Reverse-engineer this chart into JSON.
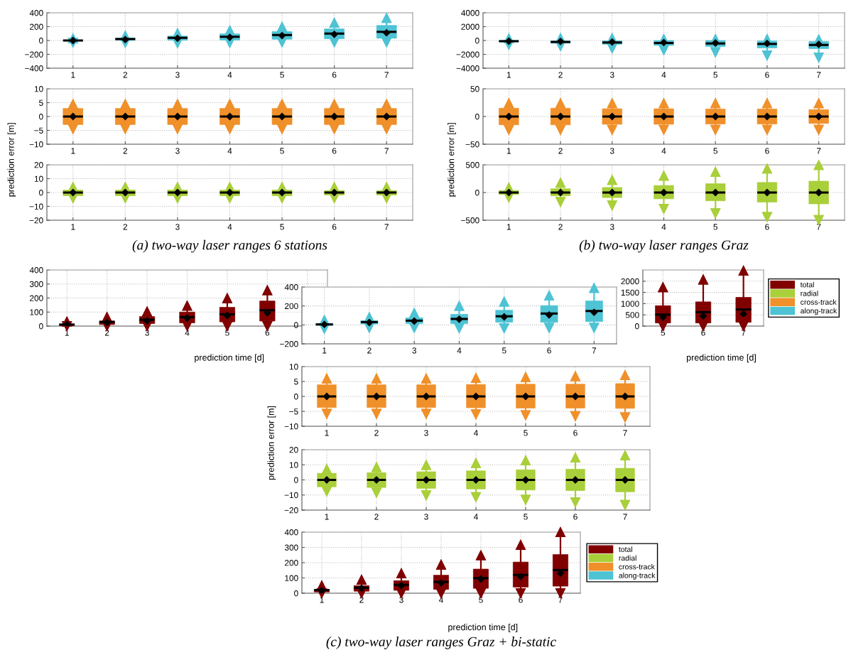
{
  "chart_data": [
    {
      "type": "box",
      "categories": [
        "1",
        "2",
        "3",
        "4",
        "5",
        "6",
        "7"
      ],
      "ylim": [
        -400,
        400
      ],
      "yticks": [
        -400,
        -200,
        0,
        200,
        400
      ],
      "grid": true,
      "series": [
        {
          "color": "#4ec3d4",
          "boxes": [
            {
              "low": -30,
              "q1": -5,
              "median": 0,
              "q3": 5,
              "high": 30,
              "mean": 0
            },
            {
              "low": -32,
              "q1": 4,
              "median": 21,
              "q3": 36,
              "high": 68,
              "mean": 14
            },
            {
              "low": -39,
              "q1": 4,
              "median": 39,
              "q3": 64,
              "high": 104,
              "mean": 32
            },
            {
              "low": -32,
              "q1": 7,
              "median": 54,
              "q3": 96,
              "high": 146,
              "mean": 46
            },
            {
              "low": -25,
              "q1": 18,
              "median": 79,
              "q3": 129,
              "high": 196,
              "mean": 71
            },
            {
              "low": -25,
              "q1": 25,
              "median": 100,
              "q3": 168,
              "high": 257,
              "mean": 89
            },
            {
              "low": -25,
              "q1": 32,
              "median": 125,
              "q3": 218,
              "high": 325,
              "mean": 111
            }
          ]
        }
      ]
    },
    {
      "type": "box",
      "categories": [
        "1",
        "2",
        "3",
        "4",
        "5",
        "6",
        "7"
      ],
      "ylim": [
        -10,
        10
      ],
      "yticks": [
        -10,
        -5,
        0,
        5,
        10
      ],
      "grid": true,
      "ylabel": "prediction error [m]",
      "series": [
        {
          "color": "#f0902a",
          "boxes": [
            {
              "low": -4.5,
              "q1": -2.9,
              "median": 0,
              "q3": 2.9,
              "high": 4.5,
              "mean": 0
            },
            {
              "low": -4.5,
              "q1": -2.9,
              "median": 0,
              "q3": 2.9,
              "high": 4.5,
              "mean": 0
            },
            {
              "low": -4.5,
              "q1": -2.9,
              "median": 0,
              "q3": 2.9,
              "high": 4.5,
              "mean": 0
            },
            {
              "low": -4.5,
              "q1": -2.9,
              "median": 0,
              "q3": 2.9,
              "high": 4.5,
              "mean": 0
            },
            {
              "low": -4.5,
              "q1": -2.9,
              "median": 0,
              "q3": 2.9,
              "high": 4.5,
              "mean": 0
            },
            {
              "low": -4.5,
              "q1": -2.9,
              "median": 0,
              "q3": 2.9,
              "high": 4.5,
              "mean": 0
            },
            {
              "low": -4.5,
              "q1": -2.9,
              "median": 0,
              "q3": 2.9,
              "high": 4.5,
              "mean": 0
            }
          ]
        }
      ]
    },
    {
      "type": "box",
      "categories": [
        "1",
        "2",
        "3",
        "4",
        "5",
        "6",
        "7"
      ],
      "ylim": [
        -20,
        20
      ],
      "yticks": [
        -20,
        -10,
        0,
        10,
        20
      ],
      "grid": true,
      "annotations": [
        "(a) two-way laser ranges 6 stations"
      ],
      "series": [
        {
          "color": "#a9cf3a",
          "boxes": [
            {
              "low": -4.1,
              "q1": -2.3,
              "median": 0,
              "q3": 1.8,
              "high": 3.9,
              "mean": 0
            },
            {
              "low": -4.1,
              "q1": -2.3,
              "median": 0,
              "q3": 1.8,
              "high": 3.9,
              "mean": 0
            },
            {
              "low": -4.1,
              "q1": -2.3,
              "median": 0,
              "q3": 1.8,
              "high": 3.9,
              "mean": 0
            },
            {
              "low": -4.1,
              "q1": -2.3,
              "median": 0,
              "q3": 1.8,
              "high": 3.9,
              "mean": 0
            },
            {
              "low": -4.1,
              "q1": -2.3,
              "median": 0,
              "q3": 1.8,
              "high": 3.9,
              "mean": 0
            },
            {
              "low": -4.1,
              "q1": -1.8,
              "median": 0,
              "q3": 1.4,
              "high": 3.9,
              "mean": 0
            },
            {
              "low": -4.1,
              "q1": -1.8,
              "median": 0,
              "q3": 1.4,
              "high": 3.9,
              "mean": 0
            }
          ]
        }
      ]
    },
    {
      "type": "box",
      "categories": [
        "1",
        "2",
        "3",
        "4",
        "5",
        "6",
        null
      ],
      "ylim": [
        0,
        400
      ],
      "yticks": [
        0,
        100,
        200,
        300,
        400
      ],
      "grid": true,
      "xlabel": "prediction time [d]",
      "series": [
        {
          "color": "#800000",
          "boxes": [
            {
              "low": 0,
              "q1": 4,
              "median": 11,
              "q3": 14,
              "high": 32,
              "mean": 11
            },
            {
              "low": 0,
              "q1": 11,
              "median": 30,
              "q3": 36,
              "high": 64,
              "mean": 25
            },
            {
              "low": 0,
              "q1": 18,
              "median": 45,
              "q3": 68,
              "high": 104,
              "mean": 38
            },
            {
              "low": 0,
              "q1": 23,
              "median": 64,
              "q3": 100,
              "high": 145,
              "mean": 57
            },
            {
              "low": 0,
              "q1": 30,
              "median": 84,
              "q3": 134,
              "high": 198,
              "mean": 75
            },
            {
              "low": 0,
              "q1": 36,
              "median": 113,
              "q3": 179,
              "high": 255,
              "mean": 95
            },
            null
          ]
        }
      ]
    },
    {
      "type": "box",
      "categories": [
        "1",
        "2",
        "3",
        "4",
        "5",
        "6",
        "7"
      ],
      "ylim": [
        -4000,
        4000
      ],
      "yticks": [
        -4000,
        -2000,
        0,
        2000,
        4000
      ],
      "grid": true,
      "series": [
        {
          "color": "#4ec3d4",
          "boxes": [
            {
              "low": -600,
              "q1": -200,
              "median": -100,
              "q3": 0,
              "high": 300,
              "mean": -100
            },
            {
              "low": -790,
              "q1": -390,
              "median": -210,
              "q3": -70,
              "high": 320,
              "mean": -140
            },
            {
              "low": -1110,
              "q1": -540,
              "median": -290,
              "q3": -40,
              "high": 320,
              "mean": -210
            },
            {
              "low": -1390,
              "q1": -710,
              "median": -360,
              "q3": 0,
              "high": 210,
              "mean": -290
            },
            {
              "low": -1680,
              "q1": -860,
              "median": -430,
              "q3": 0,
              "high": 210,
              "mean": -360
            },
            {
              "low": -2140,
              "q1": -1070,
              "median": -500,
              "q3": -70,
              "high": 210,
              "mean": -430
            },
            {
              "low": -2460,
              "q1": -1180,
              "median": -640,
              "q3": -140,
              "high": 140,
              "mean": -560
            }
          ]
        }
      ]
    },
    {
      "type": "box",
      "categories": [
        "1",
        "2",
        "3",
        "4",
        "5",
        "6",
        "7"
      ],
      "ylim": [
        -50,
        50
      ],
      "yticks": [
        -50,
        0,
        50
      ],
      "grid": true,
      "ylabel": "prediction error [m]",
      "series": [
        {
          "color": "#f0902a",
          "boxes": [
            {
              "low": -24,
              "q1": -15,
              "median": 0,
              "q3": 15,
              "high": 24,
              "mean": 0
            },
            {
              "low": -24,
              "q1": -15,
              "median": 0,
              "q3": 15,
              "high": 24,
              "mean": 0
            },
            {
              "low": -24,
              "q1": -14,
              "median": 0,
              "q3": 14,
              "high": 24,
              "mean": 0
            },
            {
              "low": -24,
              "q1": -14,
              "median": 0,
              "q3": 14,
              "high": 24,
              "mean": 0
            },
            {
              "low": -24,
              "q1": -13.5,
              "median": 0,
              "q3": 13.5,
              "high": 24,
              "mean": 0
            },
            {
              "low": -24,
              "q1": -13.5,
              "median": 0,
              "q3": 13.5,
              "high": 24,
              "mean": 0
            },
            {
              "low": -24,
              "q1": -12.5,
              "median": 0,
              "q3": 12.5,
              "high": 24,
              "mean": 0
            }
          ]
        }
      ]
    },
    {
      "type": "box",
      "categories": [
        "1",
        "2",
        "3",
        "4",
        "5",
        "6",
        "7"
      ],
      "ylim": [
        -500,
        500
      ],
      "yticks": [
        -500,
        0,
        500
      ],
      "grid": true,
      "annotations": [
        "(b) two-way laser ranges Graz"
      ],
      "series": [
        {
          "color": "#a9cf3a",
          "boxes": [
            {
              "low": -90,
              "q1": -32,
              "median": 0,
              "q3": 36,
              "high": 90,
              "mean": 0
            },
            {
              "low": -168,
              "q1": -59,
              "median": 0,
              "q3": 68,
              "high": 177,
              "mean": 0
            },
            {
              "low": -232,
              "q1": -91,
              "median": 0,
              "q3": 91,
              "high": 227,
              "mean": 0
            },
            {
              "low": -295,
              "q1": -114,
              "median": 0,
              "q3": 127,
              "high": 305,
              "mean": 0
            },
            {
              "low": -373,
              "q1": -150,
              "median": 0,
              "q3": 159,
              "high": 373,
              "mean": 0
            },
            {
              "low": -441,
              "q1": -173,
              "median": 0,
              "q3": 182,
              "high": 432,
              "mean": 0
            },
            {
              "low": -495,
              "q1": -205,
              "median": 0,
              "q3": 205,
              "high": 495,
              "mean": 0
            }
          ]
        }
      ]
    },
    {
      "type": "box",
      "categories": [
        "5",
        "6",
        "7"
      ],
      "ylim": [
        0,
        2500
      ],
      "yticks": [
        0,
        500,
        1000,
        1500,
        2000
      ],
      "grid": true,
      "xlabel": "prediction time [d]",
      "legend": "right",
      "series": [
        {
          "name": "total",
          "color": "#800000",
          "boxes": [
            {
              "low": 0,
              "q1": 140,
              "median": 510,
              "q3": 910,
              "high": 1730,
              "mean": 400
            },
            {
              "low": 0,
              "q1": 140,
              "median": 620,
              "q3": 1080,
              "high": 2070,
              "mean": 450
            },
            {
              "low": 0,
              "q1": 170,
              "median": 740,
              "q3": 1280,
              "high": 2470,
              "mean": 540
            }
          ]
        },
        {
          "name": "radial",
          "color": "#a9cf3a",
          "boxes": [
            null,
            null,
            null
          ]
        },
        {
          "name": "cross-track",
          "color": "#f0902a",
          "boxes": [
            null,
            null,
            null
          ]
        },
        {
          "name": "along-track",
          "color": "#4ec3d4",
          "boxes": [
            null,
            null,
            null
          ]
        }
      ]
    },
    {
      "type": "box",
      "categories": [
        "1",
        "2",
        "3",
        "4",
        "5",
        "6",
        "7"
      ],
      "ylim": [
        -200,
        400
      ],
      "yticks": [
        -200,
        0,
        200,
        400
      ],
      "grid": true,
      "series": [
        {
          "color": "#4ec3d4",
          "boxes": [
            {
              "low": -40,
              "q1": -5,
              "median": 5,
              "q3": 15,
              "high": 50,
              "mean": 5
            },
            {
              "low": -30,
              "q1": 10,
              "median": 30,
              "q3": 45,
              "high": 80,
              "mean": 25
            },
            {
              "low": -30,
              "q1": 15,
              "median": 45,
              "q3": 75,
              "high": 125,
              "mean": 40
            },
            {
              "low": -35,
              "q1": 14,
              "median": 63,
              "q3": 112,
              "high": 200,
              "mean": 60
            },
            {
              "low": -35,
              "q1": 28,
              "median": 91,
              "q3": 155,
              "high": 245,
              "mean": 85
            },
            {
              "low": -30,
              "q1": 28,
              "median": 120,
              "q3": 204,
              "high": 310,
              "mean": 105
            },
            {
              "low": -30,
              "q1": 35,
              "median": 147,
              "q3": 253,
              "high": 390,
              "mean": 133
            }
          ]
        }
      ]
    },
    {
      "type": "box",
      "categories": [
        "1",
        "2",
        "3",
        "4",
        "5",
        "6",
        "7"
      ],
      "ylim": [
        -10,
        10
      ],
      "yticks": [
        -10,
        -5,
        0,
        5,
        10
      ],
      "grid": true,
      "ylabel": "prediction error [m]",
      "series": [
        {
          "color": "#f0902a",
          "boxes": [
            {
              "low": -5.8,
              "q1": -3.7,
              "median": 0,
              "q3": 3.9,
              "high": 6.0,
              "mean": 0
            },
            {
              "low": -5.8,
              "q1": -3.7,
              "median": 0,
              "q3": 3.9,
              "high": 6.0,
              "mean": 0
            },
            {
              "low": -5.8,
              "q1": -3.7,
              "median": 0,
              "q3": 3.9,
              "high": 6.0,
              "mean": 0
            },
            {
              "low": -6.0,
              "q1": -3.8,
              "median": 0,
              "q3": 4.0,
              "high": 6.2,
              "mean": 0
            },
            {
              "low": -6.3,
              "q1": -3.9,
              "median": 0,
              "q3": 4.1,
              "high": 6.5,
              "mean": 0
            },
            {
              "low": -6.6,
              "q1": -3.9,
              "median": 0,
              "q3": 4.1,
              "high": 6.8,
              "mean": 0
            },
            {
              "low": -7.0,
              "q1": -4.0,
              "median": 0,
              "q3": 4.3,
              "high": 7.1,
              "mean": 0
            }
          ]
        }
      ]
    },
    {
      "type": "box",
      "categories": [
        "1",
        "2",
        "3",
        "4",
        "5",
        "6",
        "7"
      ],
      "ylim": [
        -20,
        20
      ],
      "yticks": [
        -20,
        -10,
        0,
        10,
        20
      ],
      "grid": true,
      "series": [
        {
          "color": "#a9cf3a",
          "boxes": [
            {
              "low": -7.5,
              "q1": -4.6,
              "median": 0,
              "q3": 4.4,
              "high": 7.1,
              "mean": 0
            },
            {
              "low": -8.5,
              "q1": -5.0,
              "median": 0,
              "q3": 4.8,
              "high": 8.5,
              "mean": 0
            },
            {
              "low": -10.2,
              "q1": -5.6,
              "median": 0,
              "q3": 5.4,
              "high": 9.8,
              "mean": 0
            },
            {
              "low": -11.4,
              "q1": -6.0,
              "median": 0,
              "q3": 6.0,
              "high": 11.2,
              "mean": 0
            },
            {
              "low": -13.1,
              "q1": -6.7,
              "median": 0,
              "q3": 6.7,
              "high": 12.9,
              "mean": 0
            },
            {
              "low": -14.8,
              "q1": -7.1,
              "median": 0,
              "q3": 7.1,
              "high": 14.8,
              "mean": 0
            },
            {
              "low": -16.6,
              "q1": -7.9,
              "median": 0,
              "q3": 7.7,
              "high": 16.2,
              "mean": 0
            }
          ]
        }
      ]
    },
    {
      "type": "box",
      "categories": [
        "1",
        "2",
        "3",
        "4",
        "5",
        "6",
        "7"
      ],
      "ylim": [
        0,
        400
      ],
      "yticks": [
        0,
        100,
        200,
        300,
        400
      ],
      "grid": true,
      "xlabel": "prediction time [d]",
      "legend": "right",
      "annotations": [
        "(c) two-way laser ranges Graz + bi-static"
      ],
      "series": [
        {
          "name": "total",
          "color": "#800000",
          "boxes": [
            {
              "low": 0,
              "q1": 8,
              "median": 21,
              "q3": 25,
              "high": 50,
              "mean": 17
            },
            {
              "low": 0,
              "q1": 13,
              "median": 36,
              "q3": 50,
              "high": 88,
              "mean": 32
            },
            {
              "low": 0,
              "q1": 19,
              "median": 55,
              "q3": 82,
              "high": 130,
              "mean": 50
            },
            {
              "low": 0,
              "q1": 25,
              "median": 74,
              "q3": 118,
              "high": 187,
              "mean": 67
            },
            {
              "low": 0,
              "q1": 32,
              "median": 99,
              "q3": 158,
              "high": 248,
              "mean": 93
            },
            {
              "low": 0,
              "q1": 40,
              "median": 120,
              "q3": 204,
              "high": 316,
              "mean": 109
            },
            {
              "low": 0,
              "q1": 46,
              "median": 152,
              "q3": 253,
              "high": 400,
              "mean": 131
            }
          ]
        },
        {
          "name": "radial",
          "color": "#a9cf3a",
          "boxes": [
            null,
            null,
            null,
            null,
            null,
            null,
            null
          ]
        },
        {
          "name": "cross-track",
          "color": "#f0902a",
          "boxes": [
            null,
            null,
            null,
            null,
            null,
            null,
            null
          ]
        },
        {
          "name": "along-track",
          "color": "#4ec3d4",
          "boxes": [
            null,
            null,
            null,
            null,
            null,
            null,
            null
          ]
        }
      ]
    }
  ]
}
